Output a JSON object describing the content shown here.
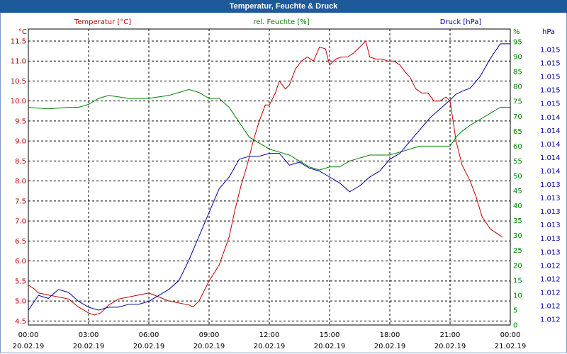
{
  "window": {
    "title": "Temperatur, Feuchte & Druck"
  },
  "colors": {
    "temperature": "#c00000",
    "humidity": "#008000",
    "pressure": "#0000a0",
    "titlebar": "#1e5a9a"
  },
  "chart_data": {
    "type": "line",
    "title": "Temperatur, Feuchte & Druck",
    "grid": true,
    "x_ticks": [
      {
        "time": "00:00",
        "date": "20.02.19"
      },
      {
        "time": "03:00",
        "date": "20.02.19"
      },
      {
        "time": "06:00",
        "date": "20.02.19"
      },
      {
        "time": "09:00",
        "date": "20.02.19"
      },
      {
        "time": "12:00",
        "date": "20.02.19"
      },
      {
        "time": "15:00",
        "date": "20.02.19"
      },
      {
        "time": "18:00",
        "date": "20.02.19"
      },
      {
        "time": "21:00",
        "date": "20.02.19"
      },
      {
        "time": "00:00",
        "date": "21.02.19"
      }
    ],
    "x_range_hours": [
      0,
      24
    ],
    "axes": {
      "temperature": {
        "unit": "°C",
        "legend": "Temperatur [°C]",
        "ylim": [
          4.4,
          11.8
        ],
        "ticks": [
          4.5,
          5.0,
          5.5,
          6.0,
          6.5,
          7.0,
          7.5,
          8.0,
          8.5,
          9.0,
          9.5,
          10.0,
          10.5,
          11.0,
          11.5
        ],
        "tick_labels": [
          "4.5",
          "5.0",
          "5.5",
          "6.0",
          "6.5",
          "7.0",
          "7.5",
          "8.0",
          "8.5",
          "9.0",
          "9.5",
          "10.0",
          "10.5",
          "11.0",
          "11.5"
        ]
      },
      "humidity": {
        "unit": "%",
        "legend": "rel. Feuchte [%]",
        "ylim": [
          0,
          95
        ],
        "ticks": [
          0,
          5,
          10,
          15,
          20,
          25,
          30,
          35,
          40,
          45,
          50,
          55,
          60,
          65,
          70,
          75,
          80,
          85,
          90,
          95
        ],
        "tick_labels": [
          "0",
          "5",
          "10",
          "15",
          "20",
          "25",
          "30",
          "35",
          "40",
          "45",
          "50",
          "55",
          "60",
          "65",
          "70",
          "75",
          "80",
          "85",
          "90",
          "95"
        ]
      },
      "pressure": {
        "unit": "hPa",
        "legend": "Druck [hPa]",
        "tick_labels": [
          "1.015",
          "1.015",
          "1.015",
          "1.015",
          "1.015",
          "1.014",
          "1.014",
          "1.014",
          "1.014",
          "1.014",
          "1.013",
          "1.013",
          "1.013",
          "1.013",
          "1.013",
          "1.013",
          "1.012",
          "1.012",
          "1.012",
          "1.012",
          "1.012"
        ]
      }
    },
    "series": [
      {
        "name": "Temperatur [°C]",
        "axis": "temperature",
        "x": [
          0,
          0.3,
          0.5,
          1,
          1.5,
          2,
          2.5,
          3,
          3.3,
          3.6,
          4,
          4.5,
          5,
          5.5,
          6,
          6.5,
          7,
          7.5,
          8,
          8.2,
          8.5,
          9,
          9.5,
          10,
          10.3,
          10.6,
          10.9,
          11.2,
          11.5,
          11.8,
          12,
          12.3,
          12.5,
          12.8,
          13,
          13.3,
          13.6,
          13.9,
          14.2,
          14.5,
          14.8,
          15,
          15.3,
          15.6,
          15.9,
          16.2,
          16.5,
          16.8,
          17,
          17.3,
          17.6,
          17.9,
          18.2,
          18.5,
          18.8,
          19,
          19.3,
          19.6,
          19.9,
          20.2,
          20.5,
          20.8,
          21,
          21.3,
          21.6,
          22,
          22.3,
          22.6,
          23,
          23.3,
          23.6
        ],
        "y": [
          5.4,
          5.3,
          5.2,
          5.15,
          5.1,
          5.05,
          4.85,
          4.7,
          4.65,
          4.7,
          4.9,
          5.05,
          5.1,
          5.15,
          5.2,
          5.1,
          5.0,
          4.95,
          4.9,
          4.85,
          5.0,
          5.5,
          5.9,
          6.6,
          7.3,
          7.9,
          8.4,
          9.0,
          9.5,
          9.9,
          9.9,
          10.2,
          10.5,
          10.3,
          10.4,
          10.8,
          11.0,
          11.1,
          11.0,
          11.35,
          11.3,
          10.9,
          11.05,
          11.1,
          11.1,
          11.2,
          11.35,
          11.5,
          11.1,
          11.05,
          11.05,
          11.0,
          11.0,
          10.9,
          10.7,
          10.6,
          10.3,
          10.2,
          10.2,
          10.0,
          10.0,
          10.1,
          10.0,
          9.0,
          8.4,
          8.0,
          7.6,
          7.1,
          6.8,
          6.7,
          6.6
        ]
      },
      {
        "name": "rel. Feuchte [%]",
        "axis": "humidity",
        "x": [
          0,
          1,
          2,
          2.5,
          3,
          3.5,
          4,
          5,
          6,
          7,
          7.5,
          8,
          8.5,
          9,
          9.5,
          10,
          10.5,
          11,
          11.5,
          12,
          12.5,
          13,
          13.5,
          14,
          14.5,
          15,
          15.5,
          16,
          16.5,
          17,
          17.5,
          18,
          18.5,
          19,
          19.5,
          20,
          20.5,
          21,
          21.3,
          21.6,
          22,
          22.5,
          23,
          23.5,
          24
        ],
        "y": [
          73,
          72.5,
          73,
          73,
          74,
          76,
          77,
          76,
          76,
          77,
          78,
          79,
          78,
          76,
          76,
          73,
          68,
          63,
          61,
          59,
          58,
          57,
          55,
          53,
          52,
          53,
          53,
          55,
          56,
          57,
          57,
          57,
          58,
          59,
          60,
          60,
          60,
          60,
          63,
          65,
          67,
          69,
          71,
          73,
          73
        ]
      },
      {
        "name": "Druck [hPa]",
        "axis": "pressure",
        "x": [
          0,
          0.5,
          1,
          1.5,
          2,
          2.5,
          3,
          3.5,
          4,
          4.5,
          5,
          5.5,
          6,
          6.5,
          7,
          7.5,
          8,
          8.5,
          9,
          9.5,
          10,
          10.5,
          11,
          11.5,
          12,
          12.5,
          13,
          13.5,
          14,
          14.5,
          15,
          15.5,
          16,
          16.5,
          17,
          17.5,
          18,
          18.5,
          19,
          19.5,
          20,
          20.5,
          21,
          21.3,
          21.6,
          22,
          22.5,
          23,
          23.5,
          24
        ],
        "y": [
          0.05,
          0.1,
          0.09,
          0.12,
          0.11,
          0.08,
          0.06,
          0.05,
          0.06,
          0.06,
          0.07,
          0.07,
          0.08,
          0.1,
          0.12,
          0.15,
          0.22,
          0.3,
          0.38,
          0.46,
          0.5,
          0.56,
          0.57,
          0.57,
          0.58,
          0.58,
          0.54,
          0.55,
          0.53,
          0.52,
          0.5,
          0.48,
          0.45,
          0.47,
          0.5,
          0.52,
          0.56,
          0.58,
          0.62,
          0.66,
          0.7,
          0.73,
          0.76,
          0.78,
          0.79,
          0.8,
          0.84,
          0.9,
          0.95,
          0.95
        ]
      }
    ]
  }
}
